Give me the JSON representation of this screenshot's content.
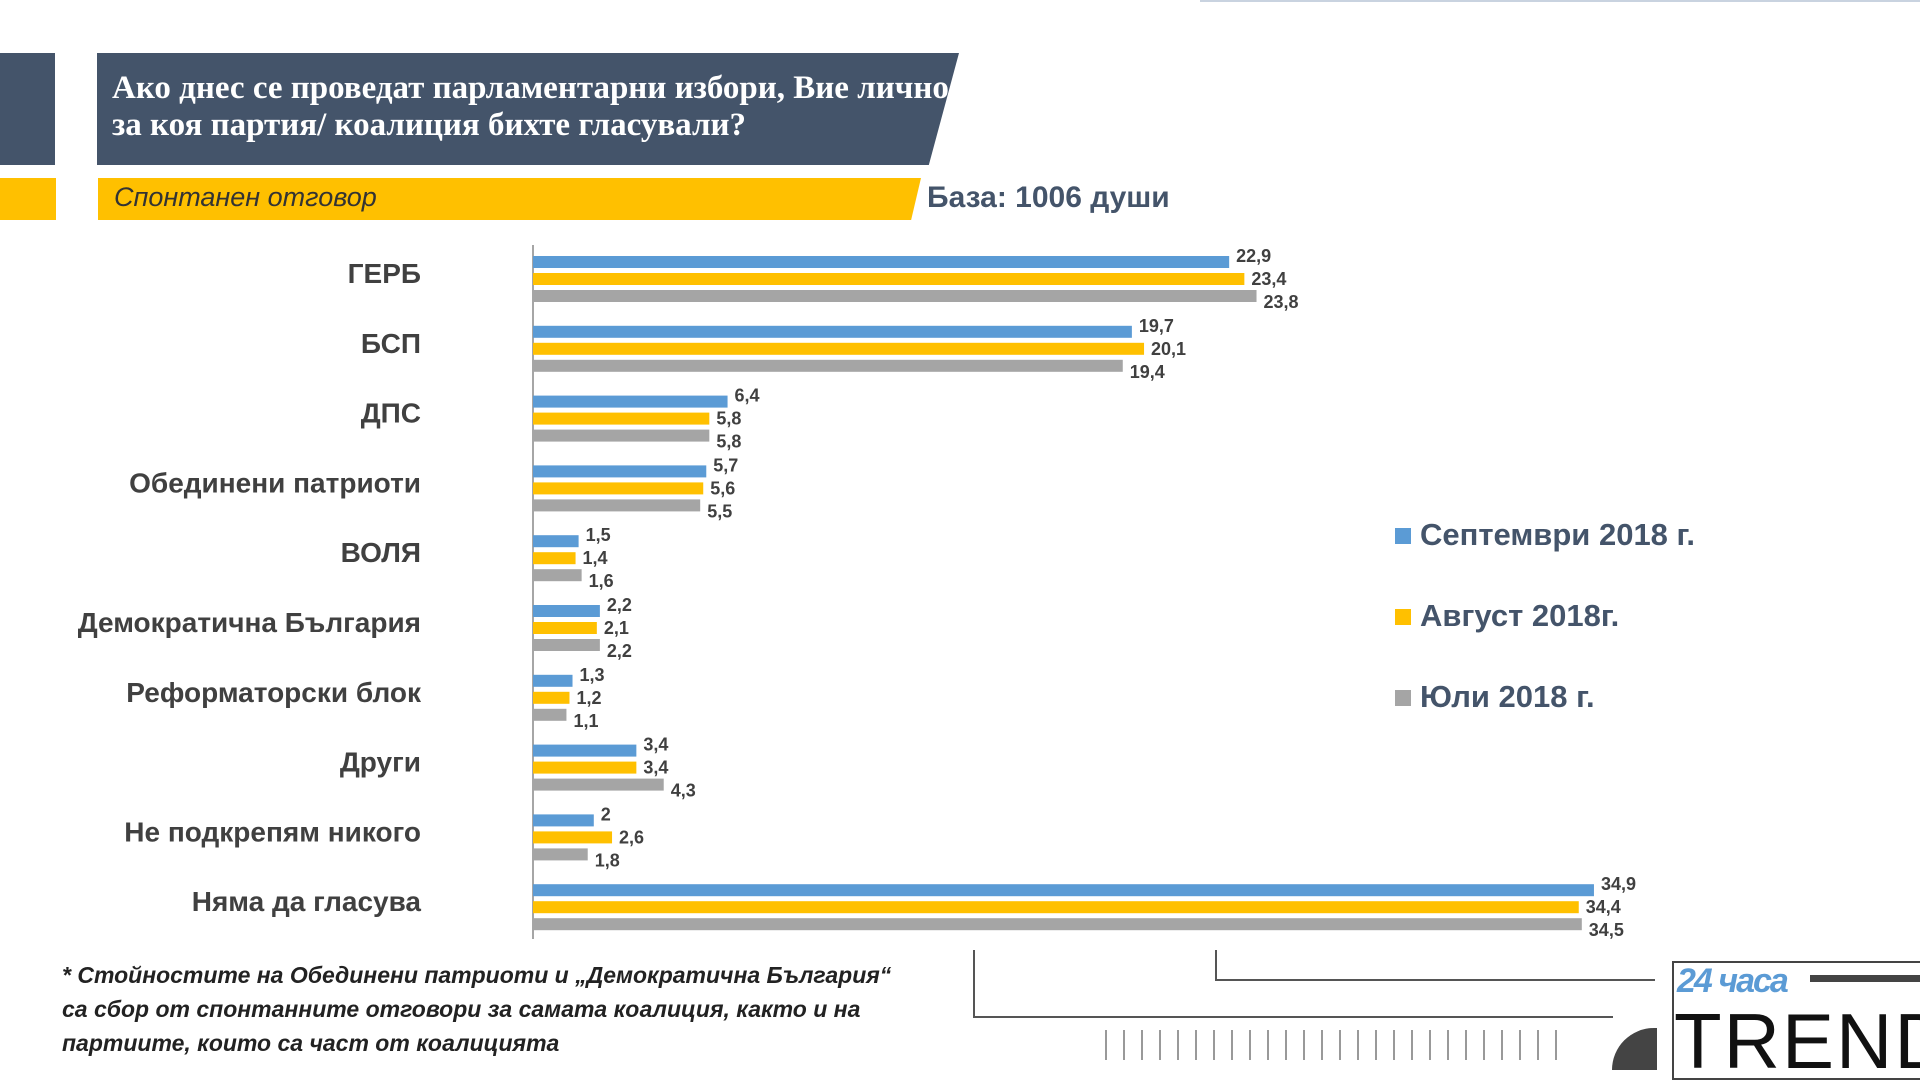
{
  "header": {
    "title": "Ако днес се проведат парламентарни избори, Вие лично за коя партия/ коалиция бихте гласували?",
    "subtitle": "Спонтанен отговор",
    "base": "База: 1006 души"
  },
  "footnote": "* Стойностите на Обединени патриоти и „Демократична България“ са сбор от спонтанните отговори за самата коалиция, както и на партиите, които са част от коалицията",
  "logo": {
    "top": "24 часа",
    "main": "TREND"
  },
  "colors": {
    "dark": "#44546a",
    "accent": "#ffc000"
  },
  "chart_data": {
    "type": "bar",
    "orientation": "horizontal",
    "categories": [
      "ГЕРБ",
      "БСП",
      "ДПС",
      "Обединени патриоти",
      "ВОЛЯ",
      "Демократична България",
      "Реформаторски блок",
      "Други",
      "Не подкрепям никого",
      "Няма да гласува"
    ],
    "series": [
      {
        "name": "Септември 2018 г.",
        "color": "#5b9bd5",
        "values": [
          22.9,
          19.7,
          6.4,
          5.7,
          1.5,
          2.2,
          1.3,
          3.4,
          2,
          34.9
        ],
        "labels": [
          "22,9",
          "19,7",
          "6,4",
          "5,7",
          "1,5",
          "2,2",
          "1,3",
          "3,4",
          "2",
          "34,9"
        ]
      },
      {
        "name": "Август 2018г.",
        "color": "#ffc000",
        "values": [
          23.4,
          20.1,
          5.8,
          5.6,
          1.4,
          2.1,
          1.2,
          3.4,
          2.6,
          34.4
        ],
        "labels": [
          "23,4",
          "20,1",
          "5,8",
          "5,6",
          "1,4",
          "2,1",
          "1,2",
          "3,4",
          "2,6",
          "34,4"
        ]
      },
      {
        "name": "Юли 2018 г.",
        "color": "#a5a5a5",
        "values": [
          23.8,
          19.4,
          5.8,
          5.5,
          1.6,
          2.2,
          1.1,
          4.3,
          1.8,
          34.5
        ],
        "labels": [
          "23,8",
          "19,4",
          "5,8",
          "5,5",
          "1,6",
          "2,2",
          "1,1",
          "4,3",
          "1,8",
          "34,5"
        ]
      },
      {
        "_": null
      }
    ],
    "legend_position": "right",
    "grid": false,
    "xlim": [
      0,
      35
    ]
  }
}
